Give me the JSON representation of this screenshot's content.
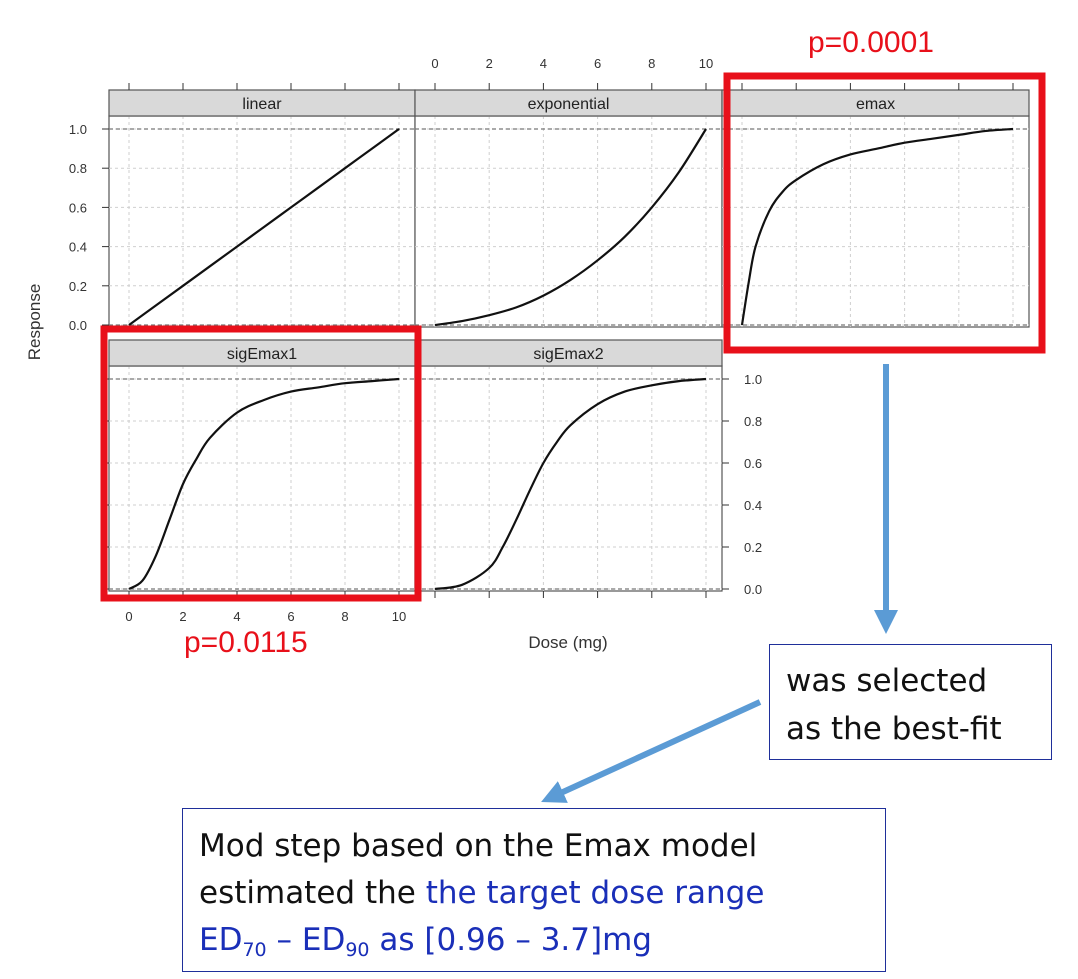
{
  "chart_data": {
    "type": "line",
    "xlabel": "Dose (mg)",
    "ylabel": "Response",
    "xlim": [
      0,
      10
    ],
    "ylim": [
      0,
      1
    ],
    "x_ticks": [
      "0",
      "2",
      "4",
      "6",
      "8",
      "10"
    ],
    "y_ticks": [
      "0.0",
      "0.2",
      "0.4",
      "0.6",
      "0.8",
      "1.0"
    ],
    "grid": true,
    "panels": [
      {
        "name": "linear",
        "x": [
          0,
          1,
          2,
          3,
          4,
          5,
          6,
          7,
          8,
          9,
          10
        ],
        "y": [
          0,
          0.1,
          0.2,
          0.3,
          0.4,
          0.5,
          0.6,
          0.7,
          0.8,
          0.9,
          1.0
        ]
      },
      {
        "name": "exponential",
        "x": [
          0,
          1,
          2,
          3,
          4,
          5,
          6,
          7,
          8,
          9,
          10
        ],
        "y": [
          0,
          0.02,
          0.05,
          0.09,
          0.15,
          0.23,
          0.33,
          0.45,
          0.6,
          0.78,
          1.0
        ]
      },
      {
        "name": "emax",
        "x": [
          0,
          0.25,
          0.5,
          1,
          1.5,
          2,
          3,
          4,
          5,
          6,
          7,
          8,
          9,
          10
        ],
        "y": [
          0,
          0.22,
          0.4,
          0.58,
          0.68,
          0.74,
          0.82,
          0.87,
          0.9,
          0.93,
          0.95,
          0.97,
          0.99,
          1.0
        ]
      },
      {
        "name": "sigEmax1",
        "x": [
          0,
          0.5,
          1,
          1.5,
          2,
          2.5,
          3,
          4,
          5,
          6,
          7,
          8,
          9,
          10
        ],
        "y": [
          0,
          0.04,
          0.16,
          0.33,
          0.5,
          0.62,
          0.72,
          0.84,
          0.9,
          0.94,
          0.96,
          0.98,
          0.99,
          1.0
        ]
      },
      {
        "name": "sigEmax2",
        "x": [
          0,
          1,
          2,
          2.5,
          3,
          3.5,
          4,
          4.5,
          5,
          6,
          7,
          8,
          9,
          10
        ],
        "y": [
          0,
          0.02,
          0.1,
          0.2,
          0.33,
          0.47,
          0.6,
          0.7,
          0.78,
          0.88,
          0.94,
          0.97,
          0.99,
          1.0
        ]
      }
    ]
  },
  "annotations": {
    "p_emax": "p=0.0001",
    "p_sigemax1": "p=0.0115",
    "selected_line1": "was selected",
    "selected_line2": "as the best-fit",
    "mod_line1": "Mod step based on the Emax model",
    "mod_line2_a": "estimated the ",
    "mod_line2_b": "the target dose range",
    "ed_base_1": "ED",
    "ed_sub_1": "70",
    "ed_dash": " – ",
    "ed_base_2": "ED",
    "ed_sub_2": "90",
    "ed_rest": " as [0.96 – 3.7]mg"
  },
  "colors": {
    "highlight": "#e8101a",
    "arrow": "#5b9bd5",
    "box_border": "#1f2f9a",
    "blue_text": "#1a2fb8",
    "strip_fill": "#d9d9d9"
  }
}
